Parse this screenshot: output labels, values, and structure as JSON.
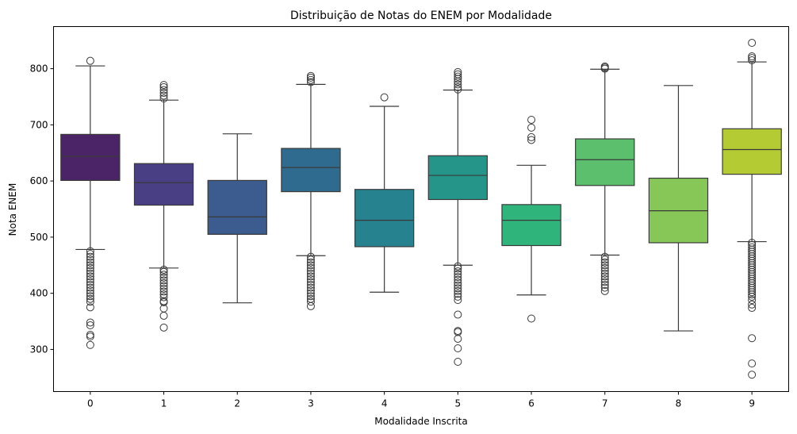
{
  "chart_data": {
    "type": "box",
    "title": "Distribuição de Notas do ENEM por Modalidade",
    "xlabel": "Modalidade Inscrita",
    "ylabel": "Nota ENEM",
    "categories": [
      "0",
      "1",
      "2",
      "3",
      "4",
      "5",
      "6",
      "7",
      "8",
      "9"
    ],
    "yticks": [
      300,
      400,
      500,
      600,
      700,
      800
    ],
    "ylim": [
      225,
      875
    ],
    "grid": false,
    "palette": [
      "#4a2466",
      "#493f85",
      "#3c5b8e",
      "#2f6b8e",
      "#26828e",
      "#25958a",
      "#2fb47c",
      "#5cbf6d",
      "#86c757",
      "#b5cb33"
    ],
    "boxes": [
      {
        "category": "0",
        "q1": 601,
        "median": 644,
        "q3": 683,
        "whisker_low": 478,
        "whisker_high": 805,
        "outliers": [
          814,
          475,
          470,
          465,
          460,
          455,
          450,
          445,
          440,
          435,
          430,
          425,
          420,
          415,
          410,
          405,
          400,
          395,
          390,
          385,
          375,
          348,
          343,
          326,
          323,
          308
        ]
      },
      {
        "category": "1",
        "q1": 557,
        "median": 597,
        "q3": 631,
        "whisker_low": 445,
        "whisker_high": 744,
        "outliers": [
          771,
          767,
          762,
          757,
          752,
          747,
          442,
          438,
          433,
          428,
          423,
          418,
          413,
          408,
          403,
          398,
          393,
          386,
          384,
          373,
          360,
          339
        ]
      },
      {
        "category": "2",
        "q1": 505,
        "median": 536,
        "q3": 601,
        "whisker_low": 383,
        "whisker_high": 684,
        "outliers": []
      },
      {
        "category": "3",
        "q1": 581,
        "median": 624,
        "q3": 658,
        "whisker_low": 467,
        "whisker_high": 772,
        "outliers": [
          787,
          784,
          780,
          776,
          465,
          460,
          455,
          450,
          445,
          440,
          435,
          430,
          425,
          420,
          415,
          410,
          405,
          400,
          395,
          390,
          385,
          377
        ]
      },
      {
        "category": "4",
        "q1": 483,
        "median": 530,
        "q3": 585,
        "whisker_low": 402,
        "whisker_high": 733,
        "outliers": [
          749
        ]
      },
      {
        "category": "5",
        "q1": 567,
        "median": 610,
        "q3": 645,
        "whisker_low": 450,
        "whisker_high": 762,
        "outliers": [
          794,
          790,
          786,
          782,
          777,
          772,
          767,
          763,
          448,
          444,
          439,
          434,
          429,
          424,
          419,
          414,
          409,
          404,
          399,
          394,
          388,
          362,
          333,
          331,
          319,
          302,
          278
        ]
      },
      {
        "category": "6",
        "q1": 485,
        "median": 530,
        "q3": 558,
        "whisker_low": 397,
        "whisker_high": 628,
        "outliers": [
          709,
          695,
          678,
          673,
          355
        ]
      },
      {
        "category": "7",
        "q1": 592,
        "median": 638,
        "q3": 675,
        "whisker_low": 468,
        "whisker_high": 799,
        "outliers": [
          804,
          802,
          800,
          465,
          460,
          455,
          450,
          445,
          440,
          435,
          430,
          425,
          420,
          415,
          410,
          404
        ]
      },
      {
        "category": "8",
        "q1": 490,
        "median": 547,
        "q3": 605,
        "whisker_low": 333,
        "whisker_high": 770,
        "outliers": []
      },
      {
        "category": "9",
        "q1": 612,
        "median": 656,
        "q3": 693,
        "whisker_low": 492,
        "whisker_high": 812,
        "outliers": [
          846,
          822,
          819,
          815,
          490,
          486,
          482,
          478,
          474,
          470,
          466,
          462,
          458,
          454,
          450,
          446,
          442,
          438,
          434,
          430,
          426,
          422,
          418,
          414,
          410,
          406,
          402,
          398,
          394,
          388,
          380,
          374,
          320,
          275,
          255
        ]
      }
    ]
  }
}
